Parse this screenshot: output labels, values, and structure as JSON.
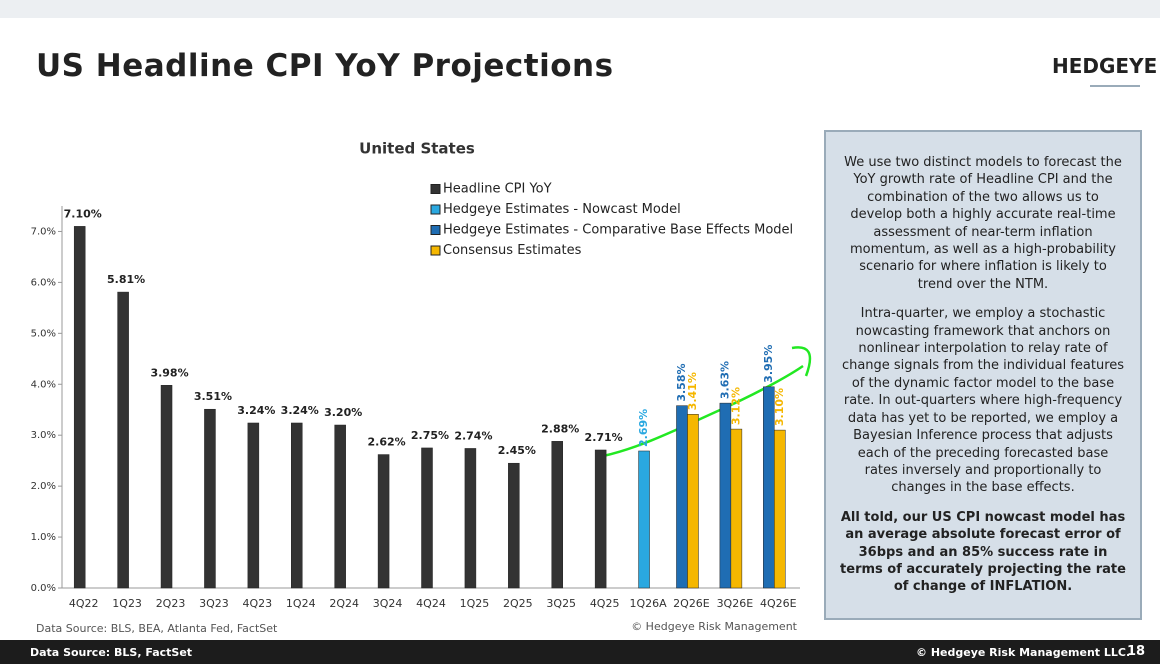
{
  "slide": {
    "title": "US Headline CPI YoY Projections",
    "logo": "HEDGEYE",
    "text_box": {
      "paragraphs": [
        "We use two distinct models to forecast the YoY growth rate of Headline CPI and the combination of the two allows us to develop both a highly accurate real-time assessment of near-term inflation momentum, as well as a high-probability scenario for where inflation is likely to trend over the NTM.",
        "Intra-quarter, we employ a stochastic nowcasting framework that anchors on nonlinear interpolation to relay rate of change signals from the individual features of the dynamic factor model to the base rate. In out-quarters where high-frequency data has yet to be reported, we employ a Bayesian Inference process that adjusts each of the preceding forecasted base rates inversely and proportionally to changes in the base effects.",
        "All told, our US CPI nowcast model has an average absolute forecast error of 36bps and an 85% success rate in terms of accurately projecting the rate of change of INFLATION."
      ]
    },
    "footer_source": "Data Source: BLS, FactSet",
    "footer_copyright": "© Hedgeye Risk Management LLC.",
    "page_number": "18"
  },
  "chart_data": {
    "type": "bar",
    "title": "United States",
    "source": "Data Source: BLS, BEA, Atlanta Fed, FactSet",
    "credit": "© Hedgeye Risk Management",
    "categories": [
      "4Q22",
      "1Q23",
      "2Q23",
      "3Q23",
      "4Q23",
      "1Q24",
      "2Q24",
      "3Q24",
      "4Q24",
      "1Q25",
      "2Q25",
      "3Q25",
      "4Q25",
      "1Q26A",
      "2Q26E",
      "3Q26E",
      "4Q26E"
    ],
    "series": [
      {
        "name": "Headline CPI YoY",
        "color": "#333333",
        "values": [
          7.1,
          5.81,
          3.98,
          3.51,
          3.24,
          3.24,
          3.2,
          2.62,
          2.75,
          2.74,
          2.45,
          2.88,
          2.71,
          null,
          null,
          null,
          null
        ],
        "value_labels": [
          "7.10%",
          "5.81%",
          "3.98%",
          "3.51%",
          "3.24%",
          "3.24%",
          "3.20%",
          "2.62%",
          "2.75%",
          "2.74%",
          "2.45%",
          "2.88%",
          "2.71%",
          null,
          null,
          null,
          null
        ]
      },
      {
        "name": "Hedgeye Estimates - Nowcast Model",
        "color": "#2aa8e0",
        "values": [
          null,
          null,
          null,
          null,
          null,
          null,
          null,
          null,
          null,
          null,
          null,
          null,
          null,
          2.69,
          null,
          null,
          null
        ],
        "value_labels": [
          null,
          null,
          null,
          null,
          null,
          null,
          null,
          null,
          null,
          null,
          null,
          null,
          null,
          "2.69%",
          null,
          null,
          null
        ]
      },
      {
        "name": "Hedgeye Estimates - Comparative Base Effects Model",
        "color": "#1f6db3",
        "values": [
          null,
          null,
          null,
          null,
          null,
          null,
          null,
          null,
          null,
          null,
          null,
          null,
          null,
          null,
          3.58,
          3.63,
          3.95
        ],
        "value_labels": [
          null,
          null,
          null,
          null,
          null,
          null,
          null,
          null,
          null,
          null,
          null,
          null,
          null,
          null,
          "3.58%",
          "3.63%",
          "3.95%"
        ]
      },
      {
        "name": "Consensus Estimates",
        "color": "#f5b700",
        "values": [
          null,
          null,
          null,
          null,
          null,
          null,
          null,
          null,
          null,
          null,
          null,
          null,
          null,
          null,
          3.41,
          3.12,
          3.1
        ],
        "value_labels": [
          null,
          null,
          null,
          null,
          null,
          null,
          null,
          null,
          null,
          null,
          null,
          null,
          null,
          null,
          "3.41%",
          "3.12%",
          "3.10%"
        ]
      }
    ],
    "ylim": [
      0,
      7.5
    ],
    "yticks": [
      {
        "value": 0,
        "label": "0.0%"
      },
      {
        "value": 1,
        "label": "1.0%"
      },
      {
        "value": 2,
        "label": "2.0%"
      },
      {
        "value": 3,
        "label": "3.0%"
      },
      {
        "value": 4,
        "label": "4.0%"
      },
      {
        "value": 5,
        "label": "5.0%"
      },
      {
        "value": 6,
        "label": "6.0%"
      },
      {
        "value": 7,
        "label": "7.0%"
      }
    ],
    "grid": false
  }
}
